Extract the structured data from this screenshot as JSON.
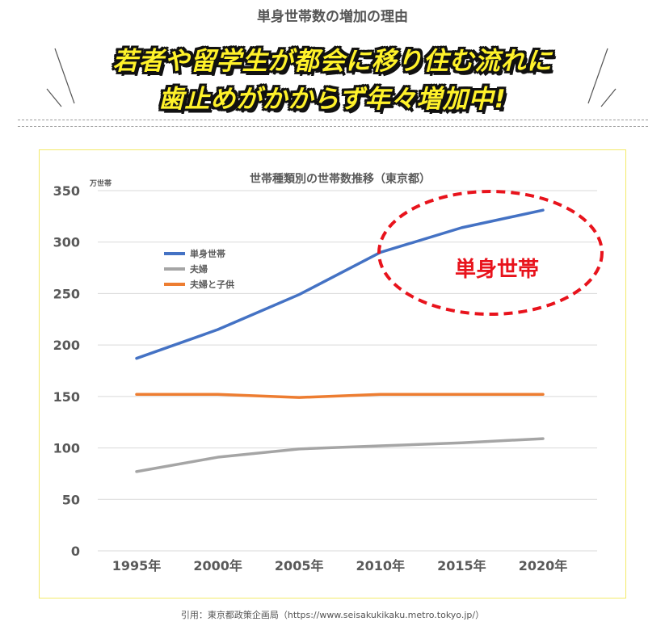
{
  "header": {
    "subtitle": "単身世帯数の増加の理由",
    "headline_line1": "若者や留学生が都会に移り住む流れに",
    "headline_line2": "歯止めがかからず年々増加中!"
  },
  "chart_data": {
    "type": "line",
    "title": "世帯種類別の世帯数推移（東京都）",
    "unit_label": "万世帯",
    "categories": [
      "1995年",
      "2000年",
      "2005年",
      "2010年",
      "2015年",
      "2020年"
    ],
    "ylim": [
      0,
      350
    ],
    "yticks": [
      0,
      50,
      100,
      150,
      200,
      250,
      300,
      350
    ],
    "grid": true,
    "legend_position": "top-left",
    "series": [
      {
        "name": "単身世帯",
        "color": "#4472c4",
        "values": [
          187,
          215,
          249,
          290,
          314,
          331
        ]
      },
      {
        "name": "夫婦",
        "color": "#a5a5a5",
        "values": [
          77,
          91,
          99,
          102,
          105,
          109
        ]
      },
      {
        "name": "夫婦と子供",
        "color": "#ed7d31",
        "values": [
          152,
          152,
          149,
          152,
          152,
          152
        ]
      }
    ],
    "annotation": {
      "text": "単身世帯",
      "color": "#e8131c"
    }
  },
  "footer": {
    "source": "引用：東京都政策企画局（https://www.seisakukikaku.metro.tokyo.jp/）"
  }
}
